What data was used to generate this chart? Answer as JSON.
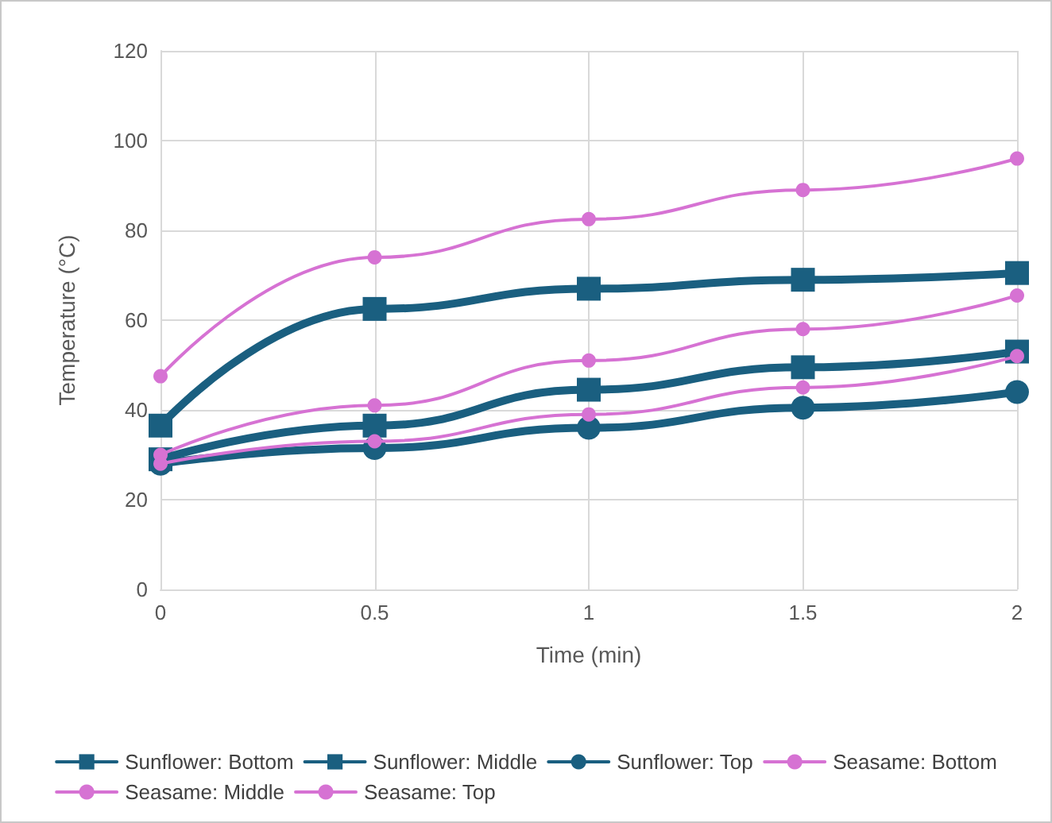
{
  "chart_data": {
    "type": "line",
    "xlabel": "Time (min)",
    "ylabel": "Temperature (°C)",
    "x": [
      0,
      0.5,
      1,
      1.5,
      2
    ],
    "xlim": [
      0,
      2
    ],
    "xticks": [
      0,
      0.5,
      1,
      1.5,
      2
    ],
    "ylim": [
      0,
      120
    ],
    "yticks": [
      0,
      20,
      40,
      60,
      80,
      100,
      120
    ],
    "grid": true,
    "legend": "bottom",
    "line_style": "solid",
    "series": [
      {
        "name": "Sunflower: Bottom",
        "color": "#1a5f80",
        "marker": "square",
        "values": [
          36.5,
          62.5,
          67,
          69,
          70.5
        ]
      },
      {
        "name": "Sunflower: Middle",
        "color": "#1a5f80",
        "marker": "square",
        "values": [
          29,
          36.5,
          44.5,
          49.5,
          53
        ]
      },
      {
        "name": "Sunflower: Top",
        "color": "#1a5f80",
        "marker": "circle",
        "values": [
          28,
          31.5,
          36,
          40.5,
          44
        ]
      },
      {
        "name": "Seasame: Bottom",
        "color": "#d672d3",
        "marker": "circle",
        "values": [
          47.5,
          74,
          82.5,
          89,
          96
        ]
      },
      {
        "name": "Seasame: Middle",
        "color": "#d672d3",
        "marker": "circle",
        "values": [
          30,
          41,
          51,
          58,
          65.5
        ]
      },
      {
        "name": "Seasame: Top",
        "color": "#d672d3",
        "marker": "circle",
        "values": [
          28,
          33,
          39,
          45,
          52
        ]
      }
    ]
  }
}
